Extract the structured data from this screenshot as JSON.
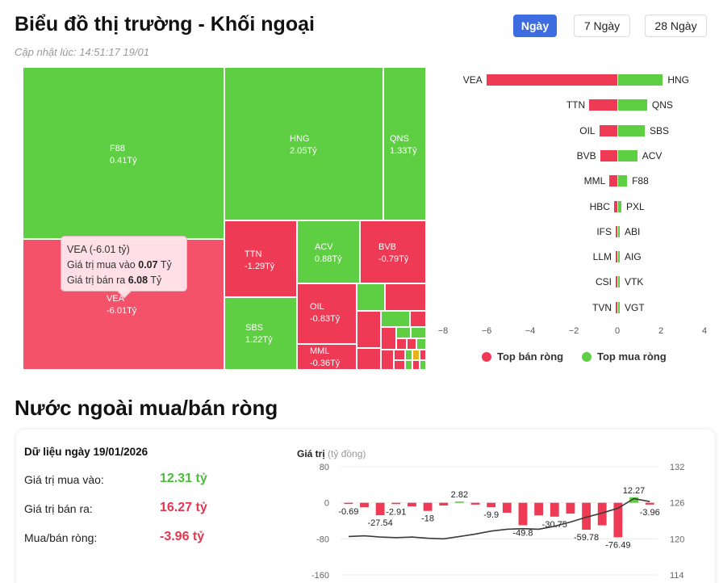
{
  "header": {
    "title": "Biểu đồ thị trường - Khối ngoại",
    "updated": "Cập nhật lúc: 14:51:17 19/01",
    "ranges": [
      {
        "label": "Ngày",
        "active": true
      },
      {
        "label": "7 Ngày",
        "active": false
      },
      {
        "label": "28 Ngày",
        "active": false
      }
    ]
  },
  "treemap": {
    "tiles": [
      {
        "code": "F88",
        "value": "0.41Tỷ",
        "kind": "buy"
      },
      {
        "code": "HNG",
        "value": "2.05Tỷ",
        "kind": "buy"
      },
      {
        "code": "QNS",
        "value": "1.33Tỷ",
        "kind": "buy"
      },
      {
        "code": "VEA",
        "value": "-6.01Tỷ",
        "kind": "sell"
      },
      {
        "code": "TTN",
        "value": "-1.29Tỷ",
        "kind": "sell"
      },
      {
        "code": "ACV",
        "value": "0.88Tỷ",
        "kind": "buy"
      },
      {
        "code": "BVB",
        "value": "-0.79Tỷ",
        "kind": "sell"
      },
      {
        "code": "SBS",
        "value": "1.22Tỷ",
        "kind": "buy"
      },
      {
        "code": "OIL",
        "value": "-0.83Tỷ",
        "kind": "sell"
      },
      {
        "code": "MML",
        "value": "-0.36Tỷ",
        "kind": "sell"
      }
    ],
    "tooltip": {
      "title": "VEA (-6.01 tỷ)",
      "buy_label": "Giá trị mua vào",
      "buy_value": "0.07",
      "sell_label": "Giá trị bán ra",
      "sell_value": "6.08",
      "unit": "Tỷ"
    }
  },
  "diverging_chart": {
    "type": "bar",
    "xlim": [
      -8,
      4
    ],
    "ticks": [
      "−8",
      "−6",
      "−4",
      "−2",
      "0",
      "2",
      "4"
    ],
    "rows": [
      {
        "sell_code": "VEA",
        "sell": -6.01,
        "buy_code": "HNG",
        "buy": 2.05
      },
      {
        "sell_code": "TTN",
        "sell": -1.29,
        "buy_code": "QNS",
        "buy": 1.33
      },
      {
        "sell_code": "OIL",
        "sell": -0.83,
        "buy_code": "SBS",
        "buy": 1.22
      },
      {
        "sell_code": "BVB",
        "sell": -0.79,
        "buy_code": "ACV",
        "buy": 0.88
      },
      {
        "sell_code": "MML",
        "sell": -0.36,
        "buy_code": "F88",
        "buy": 0.41
      },
      {
        "sell_code": "HBC",
        "sell": -0.15,
        "buy_code": "PXL",
        "buy": 0.15
      },
      {
        "sell_code": "IFS",
        "sell": -0.06,
        "buy_code": "ABI",
        "buy": 0.06
      },
      {
        "sell_code": "LLM",
        "sell": -0.05,
        "buy_code": "AIG",
        "buy": 0.05
      },
      {
        "sell_code": "CSI",
        "sell": -0.04,
        "buy_code": "VTK",
        "buy": 0.04
      },
      {
        "sell_code": "TVN",
        "sell": -0.03,
        "buy_code": "VGT",
        "buy": 0.03
      }
    ],
    "legend": {
      "sell": "Top bán ròng",
      "buy": "Top mua ròng"
    },
    "colors": {
      "sell": "#ee3a54",
      "buy": "#5ecf43"
    }
  },
  "net_section": {
    "title": "Nước ngoài mua/bán ròng",
    "date_label": "Dữ liệu ngày 19/01/2026",
    "stats": [
      {
        "label": "Giá trị mua vào:",
        "value": "12.31 tỷ",
        "tone": "green"
      },
      {
        "label": "Giá trị bán ra:",
        "value": "16.27 tỷ",
        "tone": "red"
      },
      {
        "label": "Mua/bán ròng:",
        "value": "-3.96 tỷ",
        "tone": "red"
      }
    ]
  },
  "chart_data": {
    "type": "bar",
    "title": "Giá trị",
    "subtitle": "(tỷ đồng)",
    "ylim": [
      -160,
      80
    ],
    "y_ticks": [
      80,
      0,
      -80,
      -160
    ],
    "y2lim": [
      114,
      132
    ],
    "y2_ticks": [
      132,
      126,
      120,
      114
    ],
    "values": [
      -0.69,
      -10,
      -27.54,
      -2.91,
      -8,
      -18,
      -6,
      2.82,
      -4,
      -9.9,
      -22,
      -49.8,
      -28,
      -30.75,
      -24,
      -59.78,
      -50,
      -76.49,
      12.27,
      -3.96
    ],
    "data_labels": [
      "-0.69",
      "",
      "-27.54",
      "-2.91",
      "",
      "-18",
      "",
      "2.82",
      "",
      "-9.9",
      "",
      "-49.8",
      "",
      "-30.75",
      "",
      "-59.78",
      "",
      "-76.49",
      "12.27",
      "-3.96"
    ],
    "line_values": [
      120.4,
      120.5,
      120.3,
      120.2,
      120.3,
      120.1,
      120.0,
      120.4,
      120.8,
      121.3,
      121.6,
      121.7,
      121.6,
      122.1,
      122.8,
      123.6,
      124.3,
      125.1,
      126.7,
      126.2
    ],
    "colors": {
      "up": "#5ecf43",
      "down": "#ee3a54",
      "line": "#3a3a3a"
    }
  }
}
